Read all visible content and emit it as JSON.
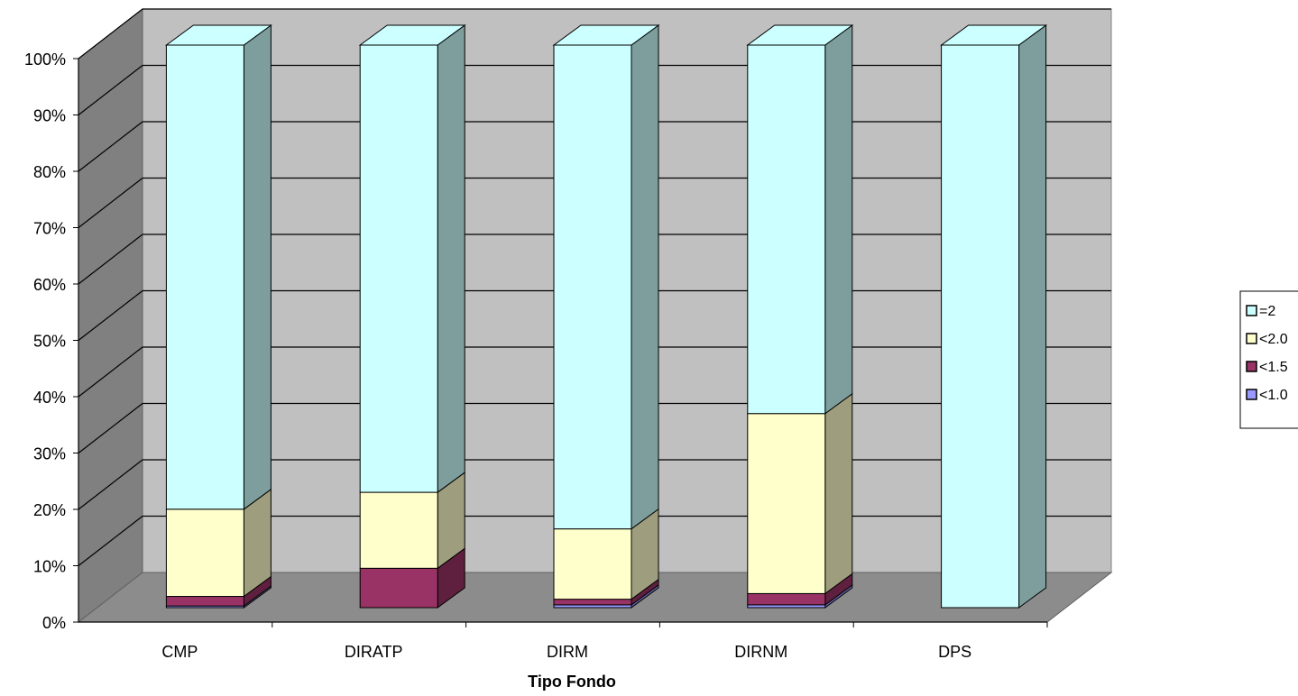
{
  "chart_data": {
    "type": "bar",
    "stacked": true,
    "percent_stacked": true,
    "three_d": true,
    "title": "",
    "xlabel": "Tipo Fondo",
    "ylabel": "",
    "ylim": [
      0,
      100
    ],
    "yticks": [
      "0%",
      "10%",
      "20%",
      "30%",
      "40%",
      "50%",
      "60%",
      "70%",
      "80%",
      "90%",
      "100%"
    ],
    "categories": [
      "CMP",
      "DIRATP",
      "DIRM",
      "DIRNM",
      "DPS"
    ],
    "series": [
      {
        "name": "<1.0",
        "color": "#9999ff",
        "values": [
          0.3,
          0,
          0.5,
          0.5,
          0
        ]
      },
      {
        "name": "<1.5",
        "color": "#993366",
        "values": [
          1.7,
          7,
          1,
          2,
          0
        ]
      },
      {
        "name": "<2.0",
        "color": "#ffffcc",
        "values": [
          15.5,
          13.5,
          12.5,
          32,
          0
        ]
      },
      {
        "name": "=2",
        "color": "#ccffff",
        "values": [
          82.5,
          79.5,
          86,
          65.5,
          100
        ]
      }
    ],
    "legend_position": "right",
    "grid": true
  }
}
